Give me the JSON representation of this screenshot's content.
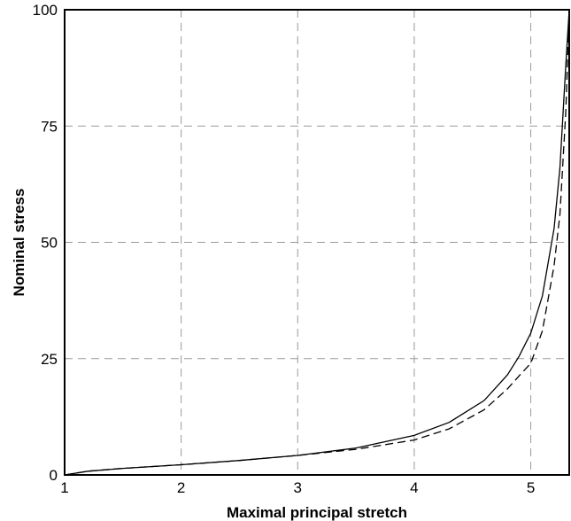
{
  "chart_data": {
    "type": "line",
    "title": "",
    "xlabel": "Maximal principal stretch",
    "ylabel": "Nominal stress",
    "xlim": [
      1,
      5.33
    ],
    "ylim": [
      0,
      100
    ],
    "grid": true,
    "xticks": [
      1,
      2,
      3,
      4,
      5
    ],
    "yticks": [
      0,
      25,
      50,
      75,
      100
    ],
    "x_tick_labels": [
      "1",
      "2",
      "3",
      "4",
      "5"
    ],
    "y_tick_labels": [
      "0",
      "25",
      "50",
      "75",
      "100"
    ],
    "series": [
      {
        "style": "solid",
        "x": [
          1.0,
          1.2,
          1.5,
          2.0,
          2.5,
          3.0,
          3.5,
          4.0,
          4.3,
          4.6,
          4.8,
          4.9,
          5.0,
          5.1,
          5.2,
          5.25,
          5.3,
          5.33
        ],
        "y": [
          0,
          0.8,
          1.4,
          2.2,
          3.1,
          4.2,
          5.8,
          8.5,
          11.3,
          16.0,
          21.5,
          25.5,
          30.5,
          38.5,
          53,
          66,
          88,
          100
        ]
      },
      {
        "style": "dashed",
        "x": [
          1.0,
          1.2,
          1.5,
          2.0,
          2.5,
          3.0,
          3.5,
          4.0,
          4.3,
          4.6,
          4.8,
          4.9,
          5.0,
          5.1,
          5.2,
          5.25,
          5.3,
          5.33
        ],
        "y": [
          0,
          0.8,
          1.4,
          2.2,
          3.1,
          4.2,
          5.5,
          7.5,
          9.9,
          14.0,
          18.5,
          21.3,
          24.0,
          31.0,
          45,
          56,
          78,
          100
        ]
      }
    ]
  }
}
